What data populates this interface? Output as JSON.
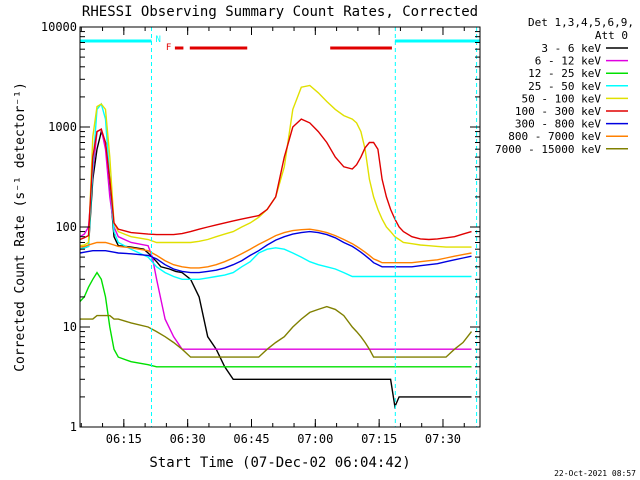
{
  "chart_data": {
    "type": "line",
    "title": "RHESSI Observing Summary Count Rates, Corrected",
    "xlabel": "Start Time (07-Dec-02 06:04:42)",
    "ylabel": "Corrected Count Rate (s⁻¹ detector⁻¹)",
    "yscale": "log",
    "ylim": [
      1,
      10000
    ],
    "xlim_minutes": [
      0,
      94
    ],
    "x_ticks": [
      {
        "label": "06:15",
        "minute": 10.3
      },
      {
        "label": "06:30",
        "minute": 25.3
      },
      {
        "label": "06:45",
        "minute": 40.3
      },
      {
        "label": "07:00",
        "minute": 55.3
      },
      {
        "label": "07:15",
        "minute": 70.3
      },
      {
        "label": "07:30",
        "minute": 85.3
      }
    ],
    "y_ticks": [
      {
        "label": "1",
        "value": 1
      },
      {
        "label": "10",
        "value": 10
      },
      {
        "label": "100",
        "value": 100
      },
      {
        "label": "1000",
        "value": 1000
      },
      {
        "label": "10000",
        "value": 10000
      }
    ],
    "legend_header": [
      "Det 1,3,4,5,6,9,",
      "Att 0"
    ],
    "timestamp": "22-Oct-2021 08:57",
    "flag_labels": {
      "night": "N",
      "flare": "F"
    },
    "flags": {
      "night": [
        [
          0,
          16.8
        ],
        [
          74,
          94
        ]
      ],
      "flare": [
        [
          22.3,
          24.3
        ],
        [
          25.8,
          39.3
        ],
        [
          58.8,
          73.3
        ]
      ],
      "boundaries_minutes": [
        16.8,
        74.1,
        93.2
      ]
    },
    "series": [
      {
        "name": "3 - 6 keV",
        "color": "#000000",
        "x": [
          0,
          1,
          2,
          3,
          4,
          5,
          6,
          7,
          8,
          9,
          12,
          15,
          16,
          17,
          18,
          19,
          21,
          22.5,
          24,
          26,
          28,
          30,
          32,
          34,
          36,
          38,
          40,
          42,
          44,
          45,
          46,
          47,
          48,
          50,
          52,
          55,
          58,
          60,
          62,
          64,
          65,
          66,
          67,
          68,
          69,
          70,
          71,
          72,
          73,
          74,
          75,
          76,
          78,
          80,
          82,
          84,
          86,
          88,
          90,
          92
        ],
        "y": [
          60,
          62,
          64,
          300,
          600,
          900,
          700,
          250,
          80,
          65,
          63,
          60,
          55,
          50,
          45,
          40,
          38,
          36,
          35,
          30,
          20,
          8,
          6,
          4,
          3,
          3,
          3,
          3,
          3,
          3,
          3,
          3,
          3,
          3,
          3,
          3,
          3,
          3,
          3,
          3,
          3,
          3,
          3,
          3,
          3,
          3,
          3,
          3,
          3,
          1.6,
          2,
          2,
          2,
          2,
          2,
          2,
          2,
          2,
          2,
          2
        ]
      },
      {
        "name": "6 - 12 keV",
        "color": "#e000e0",
        "x": [
          0,
          1,
          2,
          3,
          4,
          5,
          6,
          7,
          8,
          9,
          12,
          16,
          17,
          18,
          20,
          22,
          24,
          26,
          28,
          30,
          32,
          34,
          36,
          38,
          40,
          42,
          44,
          46,
          48,
          50,
          52,
          54,
          56,
          58,
          60,
          62,
          64,
          65,
          66,
          67,
          68,
          69,
          70,
          71,
          72,
          73,
          74,
          75,
          76,
          78,
          80,
          82,
          84,
          86,
          88,
          90,
          92
        ],
        "y": [
          80,
          85,
          100,
          350,
          900,
          950,
          600,
          200,
          100,
          80,
          70,
          65,
          50,
          30,
          12,
          8,
          6,
          6,
          6,
          6,
          6,
          6,
          6,
          6,
          6,
          6,
          6,
          6,
          6,
          6,
          6,
          6,
          6,
          6,
          6,
          6,
          6,
          6,
          6,
          6,
          6,
          6,
          6,
          6,
          6,
          6,
          6,
          6,
          6,
          6,
          6,
          6,
          6,
          6,
          6,
          6,
          6
        ]
      },
      {
        "name": "12 - 25 keV",
        "color": "#00e000",
        "x": [
          0,
          1,
          2,
          3,
          4,
          5,
          6,
          7,
          8,
          9,
          12,
          16,
          18,
          20,
          22,
          24,
          26,
          28,
          30,
          32,
          34,
          36,
          38,
          40,
          42,
          44,
          46,
          48,
          50,
          52,
          54,
          56,
          58,
          60,
          62,
          64,
          65,
          66,
          67,
          68,
          69,
          70,
          71,
          72,
          73,
          74,
          75,
          76,
          78,
          80,
          82,
          84,
          86,
          88,
          90,
          92
        ],
        "y": [
          18,
          20,
          25,
          30,
          35,
          30,
          20,
          10,
          6,
          5,
          4.5,
          4.2,
          4,
          4,
          4,
          4,
          4,
          4,
          4,
          4,
          4,
          4,
          4,
          4,
          4,
          4,
          4,
          4,
          4,
          4,
          4,
          4,
          4,
          4,
          4,
          4,
          4,
          4,
          4,
          4,
          4,
          4,
          4,
          4,
          4,
          4,
          4,
          4,
          4,
          4,
          4,
          4,
          4,
          4,
          4,
          4
        ]
      },
      {
        "name": "25 - 50 keV",
        "color": "#00ffff",
        "x": [
          0,
          1,
          2,
          3,
          4,
          5,
          6,
          7,
          8,
          9,
          12,
          16,
          18,
          20,
          22,
          24,
          26,
          28,
          30,
          32,
          34,
          36,
          38,
          40,
          42,
          44,
          46,
          48,
          50,
          52,
          54,
          56,
          58,
          60,
          62,
          64,
          65,
          66,
          67,
          68,
          69,
          70,
          71,
          72,
          73,
          74,
          75,
          76,
          78,
          80,
          82,
          84,
          86,
          88,
          90,
          92
        ],
        "y": [
          60,
          62,
          64,
          400,
          1500,
          1700,
          1200,
          300,
          90,
          70,
          60,
          50,
          40,
          35,
          32,
          30,
          30,
          30,
          31,
          32,
          33,
          35,
          40,
          45,
          55,
          60,
          62,
          60,
          55,
          50,
          45,
          42,
          40,
          38,
          35,
          32,
          32,
          32,
          32,
          32,
          32,
          32,
          32,
          32,
          32,
          32,
          32,
          32,
          32,
          32,
          32,
          32,
          32,
          32,
          32,
          32
        ]
      },
      {
        "name": "50 - 100 keV",
        "color": "#e0e000",
        "x": [
          0,
          1,
          2,
          3,
          4,
          5,
          6,
          7,
          8,
          9,
          12,
          16,
          18,
          20,
          22,
          24,
          26,
          28,
          30,
          32,
          34,
          36,
          38,
          40,
          42,
          44,
          46,
          48,
          50,
          52,
          54,
          56,
          58,
          60,
          62,
          64,
          65,
          66,
          67,
          68,
          69,
          70,
          71,
          72,
          73,
          74,
          75,
          76,
          78,
          80,
          82,
          84,
          86,
          88,
          90,
          92
        ],
        "y": [
          65,
          66,
          70,
          800,
          1600,
          1700,
          1500,
          500,
          110,
          90,
          80,
          75,
          70,
          70,
          70,
          70,
          70,
          72,
          75,
          80,
          85,
          90,
          100,
          110,
          125,
          150,
          200,
          400,
          1500,
          2500,
          2600,
          2200,
          1800,
          1500,
          1300,
          1200,
          1100,
          900,
          600,
          300,
          200,
          150,
          120,
          100,
          90,
          80,
          75,
          70,
          68,
          66,
          65,
          64,
          63,
          63,
          63,
          63
        ]
      },
      {
        "name": "100 - 300 keV",
        "color": "#e00000",
        "x": [
          0,
          1,
          2,
          3,
          4,
          5,
          6,
          7,
          8,
          9,
          12,
          16,
          18,
          20,
          22,
          24,
          26,
          28,
          30,
          32,
          34,
          36,
          38,
          40,
          42,
          44,
          46,
          48,
          50,
          52,
          54,
          56,
          58,
          60,
          62,
          64,
          65,
          66,
          67,
          68,
          69,
          70,
          71,
          72,
          73,
          74,
          75,
          76,
          78,
          80,
          82,
          84,
          86,
          88,
          90,
          92
        ],
        "y": [
          75,
          78,
          82,
          500,
          900,
          950,
          700,
          300,
          110,
          95,
          88,
          85,
          84,
          84,
          84,
          86,
          90,
          95,
          100,
          105,
          110,
          115,
          120,
          125,
          130,
          150,
          200,
          500,
          1000,
          1200,
          1100,
          900,
          700,
          500,
          400,
          380,
          420,
          500,
          620,
          700,
          700,
          600,
          300,
          200,
          150,
          120,
          100,
          90,
          80,
          76,
          75,
          76,
          78,
          80,
          85,
          90
        ]
      },
      {
        "name": "300 - 800 keV",
        "color": "#0000e0",
        "x": [
          0,
          1,
          2,
          3,
          4,
          5,
          6,
          7,
          8,
          9,
          12,
          16,
          18,
          20,
          22,
          24,
          26,
          28,
          30,
          32,
          34,
          36,
          38,
          40,
          42,
          44,
          46,
          48,
          50,
          52,
          54,
          56,
          58,
          60,
          62,
          64,
          65,
          66,
          67,
          68,
          69,
          70,
          71,
          72,
          73,
          74,
          75,
          76,
          78,
          80,
          82,
          84,
          86,
          88,
          90,
          92
        ],
        "y": [
          55,
          56,
          57,
          58,
          58,
          58,
          58,
          57,
          56,
          55,
          54,
          52,
          48,
          42,
          38,
          36,
          35,
          35,
          36,
          37,
          39,
          42,
          46,
          52,
          58,
          66,
          74,
          80,
          85,
          88,
          90,
          88,
          84,
          78,
          70,
          64,
          60,
          56,
          52,
          48,
          44,
          42,
          40,
          40,
          40,
          40,
          40,
          40,
          40,
          41,
          42,
          43,
          45,
          47,
          49,
          51
        ]
      },
      {
        "name": "800 - 7000 keV",
        "color": "#ff8000",
        "x": [
          0,
          1,
          2,
          3,
          4,
          5,
          6,
          7,
          8,
          9,
          12,
          16,
          18,
          20,
          22,
          24,
          26,
          28,
          30,
          32,
          34,
          36,
          38,
          40,
          42,
          44,
          46,
          48,
          50,
          52,
          54,
          56,
          58,
          60,
          62,
          64,
          65,
          66,
          67,
          68,
          69,
          70,
          71,
          72,
          73,
          74,
          75,
          76,
          78,
          80,
          82,
          84,
          86,
          88,
          90,
          92
        ],
        "y": [
          63,
          64,
          66,
          68,
          70,
          70,
          70,
          68,
          66,
          64,
          62,
          58,
          52,
          46,
          42,
          40,
          39,
          39,
          40,
          42,
          45,
          49,
          54,
          60,
          67,
          74,
          82,
          88,
          92,
          94,
          95,
          92,
          88,
          82,
          75,
          68,
          64,
          60,
          56,
          52,
          48,
          46,
          44,
          44,
          44,
          44,
          44,
          44,
          44,
          45,
          46,
          47,
          49,
          51,
          53,
          55
        ]
      },
      {
        "name": "7000 - 15000 keV",
        "color": "#808000",
        "x": [
          0,
          1,
          2,
          3,
          4,
          5,
          6,
          7,
          8,
          9,
          12,
          16,
          18,
          20,
          22,
          24,
          26,
          28,
          30,
          32,
          34,
          36,
          38,
          40,
          42,
          44,
          46,
          48,
          50,
          52,
          54,
          56,
          58,
          60,
          62,
          64,
          65,
          66,
          67,
          68,
          69,
          70,
          71,
          72,
          73,
          74,
          75,
          76,
          78,
          80,
          82,
          84,
          86,
          88,
          90,
          92
        ],
        "y": [
          12,
          12,
          12,
          12,
          13,
          13,
          13,
          13,
          12,
          12,
          11,
          10,
          9,
          8,
          7,
          6,
          5,
          5,
          5,
          5,
          5,
          5,
          5,
          5,
          5,
          6,
          7,
          8,
          10,
          12,
          14,
          15,
          16,
          15,
          13,
          10,
          9,
          8,
          7,
          6,
          5,
          5,
          5,
          5,
          5,
          5,
          5,
          5,
          5,
          5,
          5,
          5,
          5,
          6,
          7,
          9
        ]
      }
    ]
  }
}
